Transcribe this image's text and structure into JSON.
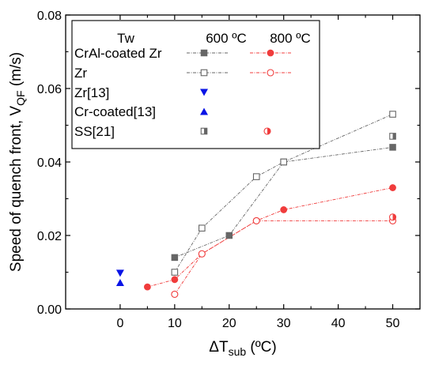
{
  "chart_data": {
    "type": "scatter",
    "xlabel": {
      "main": "ΔT",
      "sub": "sub",
      "unit": " (ºC)"
    },
    "ylabel": {
      "main": "Speed of quench front, V",
      "sub": "QF",
      "unit": " (m/s)"
    },
    "xlim": [
      -10,
      55
    ],
    "ylim": [
      0,
      0.08
    ],
    "xticks": [
      0,
      10,
      20,
      30,
      40,
      50
    ],
    "xtick_labels": [
      "0",
      "10",
      "20",
      "30",
      "40",
      "50"
    ],
    "yticks": [
      0,
      0.02,
      0.04,
      0.06,
      0.08
    ],
    "ytick_labels": [
      "0.00",
      "0.02",
      "0.04",
      "0.06",
      "0.08"
    ],
    "grid": false,
    "legend": {
      "placement": "top-left",
      "header": {
        "label": "Tw",
        "col1": "600 ºC",
        "col2": "800 ºC"
      },
      "rows": [
        "CrAl-coated Zr",
        "Zr",
        "Zr[13]",
        "Cr-coated[13]",
        "SS[21]"
      ]
    },
    "series": [
      {
        "name": "CrAl-coated Zr",
        "condition": "600 ºC",
        "marker": "square-filled",
        "color": "#666666",
        "line": true,
        "points": [
          [
            10,
            0.014
          ],
          [
            20,
            0.02
          ],
          [
            30,
            0.04
          ],
          [
            50,
            0.044
          ]
        ]
      },
      {
        "name": "CrAl-coated Zr",
        "condition": "800 ºC",
        "marker": "circle-filled",
        "color": "#f03c3c",
        "line": true,
        "points": [
          [
            5,
            0.006
          ],
          [
            10,
            0.008
          ],
          [
            15,
            0.015
          ],
          [
            25,
            0.024
          ],
          [
            30,
            0.027
          ],
          [
            50,
            0.033
          ]
        ]
      },
      {
        "name": "Zr",
        "condition": "600 ºC",
        "marker": "square-open",
        "color": "#666666",
        "line": true,
        "points": [
          [
            10,
            0.01
          ],
          [
            15,
            0.022
          ],
          [
            25,
            0.036
          ],
          [
            30,
            0.04
          ],
          [
            50,
            0.053
          ]
        ]
      },
      {
        "name": "Zr",
        "condition": "800 ºC",
        "marker": "circle-open",
        "color": "#f03c3c",
        "line": true,
        "points": [
          [
            10,
            0.004
          ],
          [
            15,
            0.015
          ],
          [
            25,
            0.024
          ],
          [
            50,
            0.024
          ]
        ]
      },
      {
        "name": "Zr[13]",
        "marker": "triangle-down",
        "color": "#0a14e6",
        "line": false,
        "points": [
          [
            0,
            0.0097
          ]
        ]
      },
      {
        "name": "Cr-coated[13]",
        "marker": "triangle-up",
        "color": "#0a14e6",
        "line": false,
        "points": [
          [
            0,
            0.0072
          ]
        ]
      },
      {
        "name": "SS[21]",
        "condition": "600 ºC",
        "marker": "square-half",
        "color": "#666666",
        "line": false,
        "points": [
          [
            50,
            0.047
          ]
        ]
      },
      {
        "name": "SS[21]",
        "condition": "800 ºC",
        "marker": "circle-half",
        "color": "#f03c3c",
        "line": false,
        "points": [
          [
            50,
            0.025
          ]
        ]
      }
    ]
  }
}
